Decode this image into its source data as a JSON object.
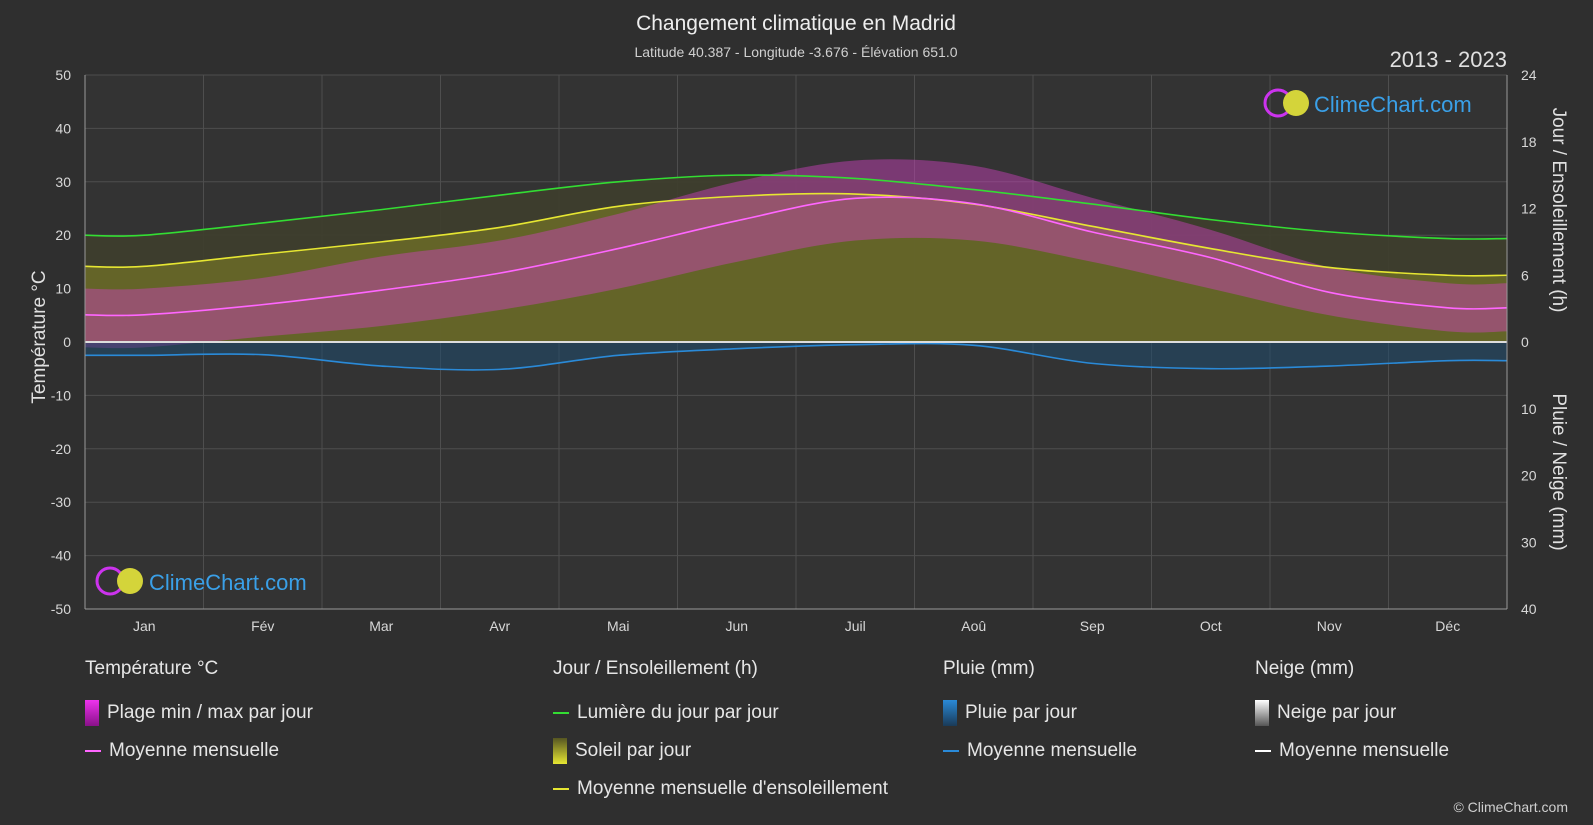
{
  "chart_data": {
    "type": "area",
    "title": "Changement climatique en Madrid",
    "subtitle": "Latitude 40.387 - Longitude -3.676 - Élévation 651.0",
    "period": "2013 - 2023",
    "categories": [
      "Jan",
      "Fév",
      "Mar",
      "Avr",
      "Mai",
      "Jun",
      "Juil",
      "Aoû",
      "Sep",
      "Oct",
      "Nov",
      "Déc"
    ],
    "y_left": {
      "label": "Température °C",
      "range": [
        -50,
        50
      ],
      "ticks": [
        50,
        40,
        30,
        20,
        10,
        0,
        -10,
        -20,
        -30,
        -40,
        -50
      ]
    },
    "y_right_top": {
      "label": "Jour / Ensoleillement (h)",
      "range": [
        0,
        24
      ],
      "ticks": [
        24,
        18,
        12,
        6,
        0
      ]
    },
    "y_right_bottom": {
      "label": "Pluie / Neige (mm)",
      "range": [
        0,
        40
      ],
      "ticks": [
        10,
        20,
        30,
        40
      ]
    },
    "series": [
      {
        "name": "Lumière du jour par jour",
        "axis": "hours",
        "color": "#33dd33",
        "values": [
          9.6,
          10.7,
          11.9,
          13.2,
          14.4,
          15.0,
          14.7,
          13.7,
          12.4,
          11.0,
          9.9,
          9.3
        ]
      },
      {
        "name": "Moyenne mensuelle d'ensoleillement",
        "axis": "hours",
        "color": "#e6e632",
        "values": [
          6.8,
          7.9,
          9.0,
          10.3,
          12.2,
          13.1,
          13.3,
          12.4,
          10.4,
          8.4,
          6.7,
          6.0
        ]
      },
      {
        "name": "Moyenne mensuelle",
        "group": "Température °C",
        "axis": "temp",
        "color": "#ff66ff",
        "values": [
          5.1,
          7.0,
          9.7,
          12.9,
          17.5,
          22.7,
          26.9,
          25.9,
          20.6,
          15.8,
          9.3,
          6.4
        ]
      },
      {
        "name": "Moyenne mensuelle",
        "group": "Pluie (mm)",
        "axis": "mm",
        "color": "#2a8ad8",
        "values": [
          2.0,
          1.9,
          3.6,
          4.1,
          2.0,
          1.0,
          0.4,
          0.5,
          3.2,
          4.0,
          3.6,
          2.8
        ]
      }
    ],
    "temp_range_max": [
      10,
      12,
      16,
      19,
      24,
      30,
      34,
      33,
      27,
      21,
      14,
      11
    ],
    "temp_range_min": [
      -1,
      1,
      3,
      6,
      10,
      15,
      19,
      19,
      15,
      10,
      5,
      2
    ],
    "grid": true
  },
  "legend": {
    "temp": {
      "header": "Température °C",
      "items": [
        "Plage min / max par jour",
        "Moyenne mensuelle"
      ]
    },
    "sun": {
      "header": "Jour / Ensoleillement (h)",
      "items": [
        "Lumière du jour par jour",
        "Soleil par jour",
        "Moyenne mensuelle d'ensoleillement"
      ]
    },
    "rain": {
      "header": "Pluie (mm)",
      "items": [
        "Pluie par jour",
        "Moyenne mensuelle"
      ]
    },
    "snow": {
      "header": "Neige (mm)",
      "items": [
        "Neige par jour",
        "Moyenne mensuelle"
      ]
    }
  },
  "brand": "ClimeChart.com",
  "copyright": "© ClimeChart.com",
  "colors": {
    "background": "#2f2f2f",
    "daylight": "#33dd33",
    "sunshine": "#e6e632",
    "temp": "#ff66ff",
    "rain": "#2a8ad8",
    "temp_range": "#cc22cc"
  }
}
